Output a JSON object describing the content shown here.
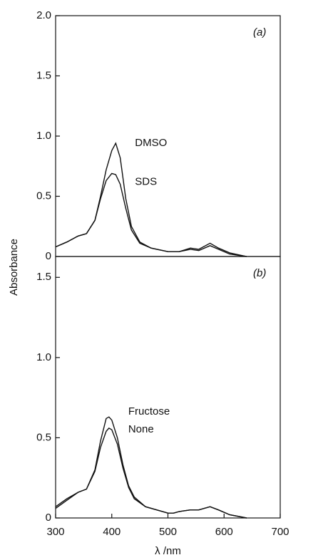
{
  "chart_data": [
    {
      "type": "line",
      "panel_label": "(a)",
      "ylabel": "Absorbance",
      "x": [
        300,
        320,
        340,
        355,
        370,
        380,
        390,
        400,
        407,
        415,
        425,
        435,
        450,
        470,
        500,
        520,
        540,
        555,
        575,
        590,
        610,
        640
      ],
      "series": [
        {
          "name": "DMSO",
          "color": "#111111",
          "values": [
            0.08,
            0.12,
            0.17,
            0.19,
            0.3,
            0.5,
            0.72,
            0.88,
            0.94,
            0.82,
            0.48,
            0.25,
            0.12,
            0.07,
            0.04,
            0.04,
            0.07,
            0.06,
            0.11,
            0.07,
            0.03,
            0
          ]
        },
        {
          "name": "SDS",
          "color": "#111111",
          "values": [
            0.08,
            0.12,
            0.17,
            0.19,
            0.3,
            0.48,
            0.63,
            0.69,
            0.68,
            0.6,
            0.4,
            0.22,
            0.11,
            0.07,
            0.04,
            0.04,
            0.06,
            0.05,
            0.09,
            0.06,
            0.02,
            0
          ]
        }
      ],
      "xlim": [
        300,
        700
      ],
      "ylim": [
        0,
        2
      ],
      "yticks": [
        0,
        0.5,
        {
          "value": 1,
          "label": "1.0"
        },
        1.5,
        {
          "value": 2,
          "label": "2.0"
        }
      ]
    },
    {
      "type": "line",
      "panel_label": "(b)",
      "xlabel": "λ /nm",
      "x": [
        300,
        320,
        340,
        355,
        370,
        380,
        390,
        395,
        400,
        410,
        420,
        430,
        440,
        460,
        480,
        500,
        510,
        520,
        540,
        555,
        575,
        590,
        610,
        640
      ],
      "series": [
        {
          "name": "Fructose",
          "color": "#111111",
          "values": [
            0.07,
            0.12,
            0.16,
            0.18,
            0.3,
            0.48,
            0.62,
            0.63,
            0.61,
            0.5,
            0.33,
            0.2,
            0.13,
            0.07,
            0.05,
            0.03,
            0.03,
            0.04,
            0.05,
            0.05,
            0.07,
            0.05,
            0.02,
            0
          ]
        },
        {
          "name": "None",
          "color": "#111111",
          "values": [
            0.06,
            0.11,
            0.16,
            0.18,
            0.29,
            0.44,
            0.54,
            0.56,
            0.55,
            0.46,
            0.31,
            0.19,
            0.12,
            0.07,
            0.05,
            0.03,
            0.03,
            0.04,
            0.05,
            0.05,
            0.07,
            0.05,
            0.02,
            0
          ]
        }
      ],
      "xlim": [
        300,
        700
      ],
      "ylim": [
        0,
        1.63
      ],
      "xticks": [
        300,
        400,
        500,
        600,
        700
      ],
      "yticks": [
        0,
        0.5,
        {
          "value": 1,
          "label": "1.0"
        },
        1.5
      ]
    }
  ]
}
